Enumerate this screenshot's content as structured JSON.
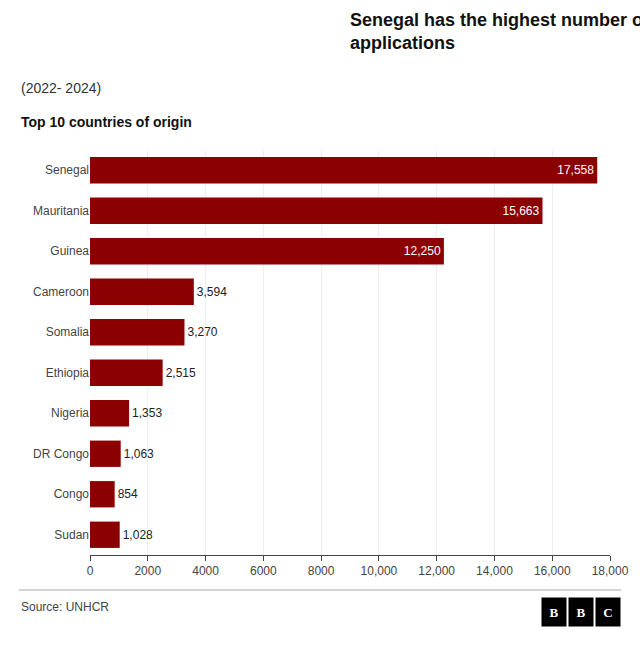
{
  "chart_data": {
    "type": "bar",
    "orientation": "horizontal",
    "title": "Senegal has the highest number of US asylum\napplications",
    "subtitle": "(2022- 2024)",
    "annotations": [
      "Top 10 countries of origin",
      "Source: UNHCR",
      "BBC"
    ],
    "categories": [
      "Sudan",
      "Congo",
      "DR Congo",
      "Nigeria",
      "Ethiopia",
      "Somalia",
      "Cameroon",
      "Guinea",
      "Mauritania",
      "Senegal"
    ],
    "values": [
      1028,
      854,
      1063,
      1353,
      2515,
      3270,
      3594,
      12250,
      15663,
      17558
    ],
    "value_labels": [
      "1,028",
      "854",
      "1,063",
      "1,353",
      "2,515",
      "3,270",
      "3,594",
      "12,250",
      "15,663",
      "17,558"
    ],
    "data_labels": true,
    "color": "#8B0000",
    "xlim": [
      0,
      18000
    ],
    "xticks": [
      0,
      2000,
      4000,
      6000,
      8000,
      {
        "value": 10000,
        "label": "10,000"
      },
      {
        "value": 12000,
        "label": "12,000"
      },
      {
        "value": 14000,
        "label": "14,000"
      },
      {
        "value": 16000,
        "label": "16,000"
      },
      {
        "value": 18000,
        "label": "18,000"
      }
    ],
    "grid": true
  }
}
